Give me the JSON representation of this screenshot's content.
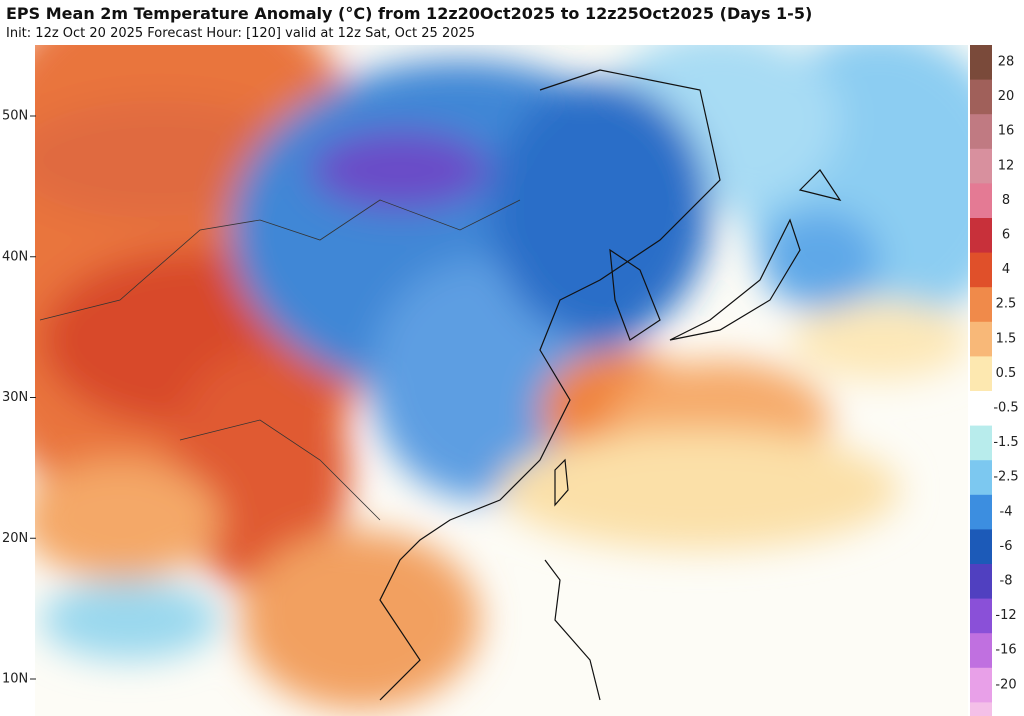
{
  "header": {
    "title": "EPS Mean 2m Temperature Anomaly (°C) from 12z20Oct2025 to 12z25Oct2025 (Days 1-5)",
    "subtitle": "Init: 12z Oct 20 2025   Forecast Hour: [120]   valid at 12z Sat, Oct 25 2025"
  },
  "map": {
    "lat_labels": [
      "50N",
      "40N",
      "30N",
      "20N",
      "10N"
    ]
  },
  "colorbar": {
    "labels": [
      "28",
      "20",
      "16",
      "12",
      "8",
      "6",
      "4",
      "2.5",
      "1.5",
      "0.5",
      "-0.5",
      "-1.5",
      "-2.5",
      "-4",
      "-6",
      "-8",
      "-12",
      "-16",
      "-20"
    ],
    "colors": [
      "#7a4a3a",
      "#a0605a",
      "#c07a82",
      "#d8909e",
      "#e47a94",
      "#c8303a",
      "#e0502a",
      "#f08a4a",
      "#f8b878",
      "#fde8b0",
      "#ffffff",
      "#b8ecec",
      "#7cc8f0",
      "#3c8ee0",
      "#1c5ab8",
      "#5040c0",
      "#8a50d8",
      "#c070e0",
      "#e8a0e8"
    ]
  }
}
